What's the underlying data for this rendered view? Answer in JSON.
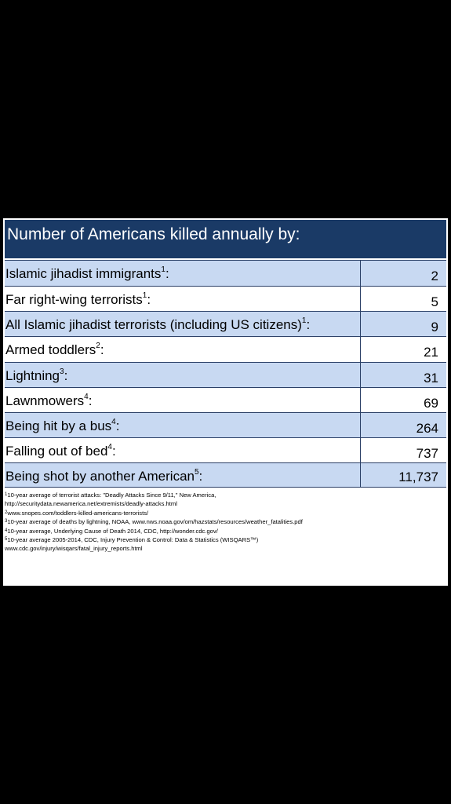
{
  "title": "Number of Americans killed annually by:",
  "rows": [
    {
      "label": "Islamic jihadist immigrants",
      "ref": "1",
      "value": "2",
      "shade": true
    },
    {
      "label": "Far right-wing terrorists",
      "ref": "1",
      "value": "5",
      "shade": false
    },
    {
      "label": "All Islamic jihadist terrorists (including US citizens)",
      "ref": "1",
      "value": "9",
      "shade": true
    },
    {
      "label": "Armed toddlers",
      "ref": "2",
      "value": "21",
      "shade": false
    },
    {
      "label": "Lightning",
      "ref": "3",
      "value": "31",
      "shade": true
    },
    {
      "label": "Lawnmowers",
      "ref": "4",
      "value": "69",
      "shade": false
    },
    {
      "label": "Being hit by a bus",
      "ref": "4",
      "value": "264",
      "shade": true
    },
    {
      "label": "Falling out of bed",
      "ref": "4",
      "value": "737",
      "shade": false
    },
    {
      "label": "Being shot by another American",
      "ref": "5",
      "value": "11,737",
      "shade": true
    }
  ],
  "colon": ":",
  "footnotes": [
    {
      "ref": "1",
      "text": "10-year average of terrorist attacks: \"Deadly Attacks Since 9/11,\" New America,"
    },
    {
      "ref": "",
      "text": "http://securitydata.newamerica.net/extremists/deadly-attacks.html"
    },
    {
      "ref": "2",
      "text": "www.snopes.com/toddlers-killed-americans-terrorists/"
    },
    {
      "ref": "3",
      "text": "10-year average of deaths by lightning, NOAA, www.nws.noaa.gov/om/hazstats/resources/weather_fatalities.pdf"
    },
    {
      "ref": "4",
      "text": "10-year average, Underlying Cause of Death 2014, CDC, http://wonder.cdc.gov/"
    },
    {
      "ref": "5",
      "text": "10-year average 2005-2014, CDC, Injury Prevention & Control: Data & Statistics (WISQARS™)"
    },
    {
      "ref": "",
      "text": "www.cdc.gov/injury/wisqars/fatal_injury_reports.html"
    }
  ]
}
